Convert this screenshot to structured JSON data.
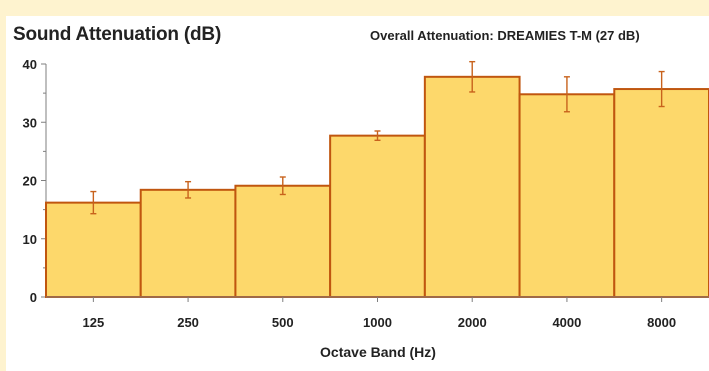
{
  "title": "Sound Attenuation (dB)",
  "subtitle": "Overall Attenuation:   DREAMIES T-M (27 dB)",
  "chart_data": {
    "type": "bar",
    "title": "Sound Attenuation (dB)",
    "subtitle": "Overall Attenuation:   DREAMIES T-M (27 dB)",
    "xlabel": "Octave Band (Hz)",
    "ylabel": "",
    "categories": [
      "125",
      "250",
      "500",
      "1000",
      "2000",
      "4000",
      "8000"
    ],
    "values": [
      16.2,
      18.4,
      19.1,
      27.7,
      37.8,
      34.8,
      35.7
    ],
    "error": [
      1.9,
      1.4,
      1.5,
      0.8,
      2.6,
      3.0,
      3.0
    ],
    "ylim": [
      0,
      40
    ],
    "yticks": [
      0,
      10,
      20,
      30,
      40
    ],
    "grid": false,
    "legend": "none",
    "colors": {
      "bar_fill": "#fdd86b",
      "bar_stroke": "#c0560f",
      "error_bar": "#c8621c",
      "background": "#fef3cf"
    }
  }
}
